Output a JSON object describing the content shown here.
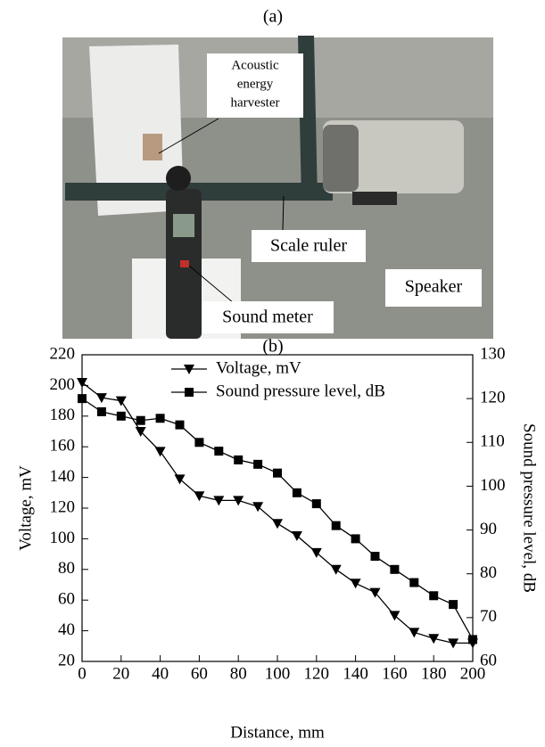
{
  "panel_a": {
    "label": "(a)",
    "harvester": [
      "Acoustic",
      "energy",
      "harvester"
    ],
    "ruler": "Scale ruler",
    "speaker": "Speaker",
    "meter": "Sound meter"
  },
  "panel_b": {
    "label": "(b)"
  },
  "chart_data": {
    "type": "line",
    "x_label": "Distance, mm",
    "y_label": "Voltage, mV",
    "y2_label": "Sound pressure level, dB",
    "x": [
      0,
      10,
      20,
      30,
      40,
      50,
      60,
      70,
      80,
      90,
      100,
      110,
      120,
      130,
      140,
      150,
      160,
      170,
      180,
      190,
      200
    ],
    "series": [
      {
        "name": "Voltage, mV",
        "color": "#000000",
        "marker": "triangle-down",
        "values": [
          202,
          192,
          190,
          170,
          157,
          139,
          128,
          125,
          125,
          121,
          110,
          102,
          91,
          80,
          71,
          65,
          50,
          39,
          35,
          32,
          32
        ]
      },
      {
        "name": "Sound pressure level, dB",
        "color": "#000000",
        "marker": "square",
        "axis": "y2",
        "values": [
          120,
          117,
          116,
          115,
          115.5,
          114,
          110,
          108,
          106,
          105,
          103,
          98.5,
          96,
          91,
          88,
          84,
          81,
          78,
          75,
          73,
          65
        ]
      }
    ],
    "xlim": [
      0,
      200
    ],
    "xticks": [
      0,
      20,
      40,
      60,
      80,
      100,
      120,
      140,
      160,
      180,
      200
    ],
    "ylim": [
      20,
      220
    ],
    "yticks": [
      20,
      40,
      60,
      80,
      100,
      120,
      140,
      160,
      180,
      200,
      220
    ],
    "y2lim": [
      60,
      130
    ],
    "y2ticks": [
      60,
      70,
      80,
      90,
      100,
      110,
      120,
      130
    ],
    "legend": "upper center",
    "grid": false
  }
}
